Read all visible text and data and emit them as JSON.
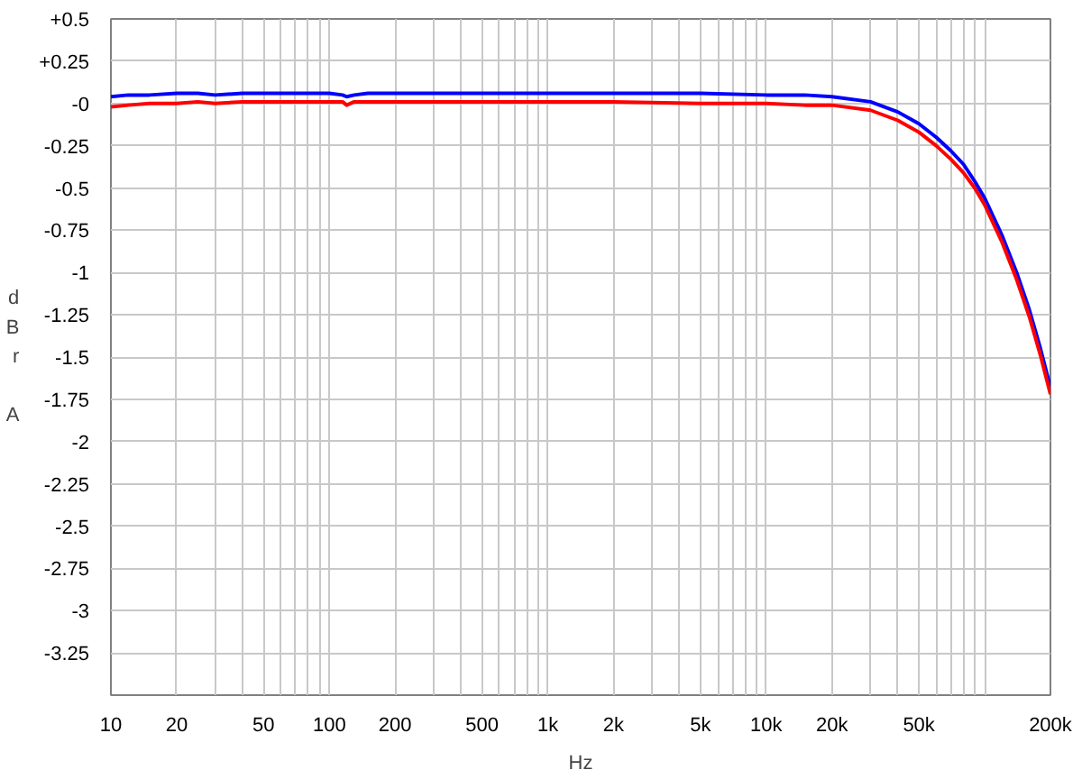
{
  "chart_data": {
    "type": "line",
    "xlabel": "Hz",
    "ylabel": "dBr A",
    "log": "x",
    "grid": true,
    "marker": "none",
    "line_style": "solid",
    "x": [
      10,
      12,
      15,
      20,
      25,
      30,
      40,
      50,
      70,
      100,
      115,
      120,
      130,
      150,
      200,
      500,
      1000,
      2000,
      5000,
      10000,
      15000,
      20000,
      30000,
      40000,
      50000,
      60000,
      70000,
      80000,
      90000,
      100000,
      120000,
      140000,
      160000,
      180000,
      200000
    ],
    "series": [
      {
        "color": "#0000ff",
        "values": [
          0.04,
          0.05,
          0.05,
          0.06,
          0.06,
          0.05,
          0.06,
          0.06,
          0.06,
          0.06,
          0.05,
          0.04,
          0.05,
          0.06,
          0.06,
          0.06,
          0.06,
          0.06,
          0.06,
          0.05,
          0.05,
          0.04,
          0.01,
          -0.05,
          -0.12,
          -0.2,
          -0.28,
          -0.36,
          -0.46,
          -0.56,
          -0.78,
          -1.0,
          -1.22,
          -1.45,
          -1.68
        ]
      },
      {
        "color": "#ff0000",
        "values": [
          -0.02,
          -0.01,
          0,
          0.0,
          0.01,
          0.0,
          0.01,
          0.01,
          0.01,
          0.01,
          0.01,
          -0.01,
          0.01,
          0.01,
          0.01,
          0.01,
          0.01,
          0.01,
          0.0,
          0,
          -0.01,
          -0.01,
          -0.04,
          -0.1,
          -0.17,
          -0.25,
          -0.33,
          -0.41,
          -0.5,
          -0.6,
          -0.82,
          -1.04,
          -1.26,
          -1.49,
          -1.72
        ]
      }
    ],
    "xlim": [
      10,
      200000
    ],
    "xticks": [
      10,
      20,
      {
        "value": 30,
        "label": null
      },
      {
        "value": 40,
        "label": null
      },
      50,
      {
        "value": 60,
        "label": null
      },
      {
        "value": 70,
        "label": null
      },
      {
        "value": 80,
        "label": null
      },
      {
        "value": 90,
        "label": null
      },
      100,
      200,
      {
        "value": 300,
        "label": null
      },
      {
        "value": 400,
        "label": null
      },
      500,
      {
        "value": 600,
        "label": null
      },
      {
        "value": 700,
        "label": null
      },
      {
        "value": 800,
        "label": null
      },
      {
        "value": 900,
        "label": null
      },
      {
        "value": 1000,
        "label": "1k"
      },
      {
        "value": 2000,
        "label": "2k"
      },
      {
        "value": 3000,
        "label": null
      },
      {
        "value": 4000,
        "label": null
      },
      {
        "value": 5000,
        "label": "5k"
      },
      {
        "value": 6000,
        "label": null
      },
      {
        "value": 7000,
        "label": null
      },
      {
        "value": 8000,
        "label": null
      },
      {
        "value": 9000,
        "label": null
      },
      {
        "value": 10000,
        "label": "10k"
      },
      {
        "value": 20000,
        "label": "20k"
      },
      {
        "value": 30000,
        "label": null
      },
      {
        "value": 40000,
        "label": null
      },
      {
        "value": 50000,
        "label": "50k"
      },
      {
        "value": 60000,
        "label": null
      },
      {
        "value": 70000,
        "label": null
      },
      {
        "value": 80000,
        "label": null
      },
      {
        "value": 90000,
        "label": null
      },
      {
        "value": 100000,
        "label": null
      },
      {
        "value": 200000,
        "label": "200k"
      }
    ],
    "ylim": [
      -3.5,
      0.5
    ],
    "yticks": [
      {
        "value": 0.5,
        "label": "+0.5"
      },
      {
        "value": 0.25,
        "label": "+0.25"
      },
      {
        "value": 0,
        "label": "-0"
      },
      -0.25,
      -0.5,
      -0.75,
      -1,
      -1.25,
      -1.5,
      -1.75,
      -2,
      -2.25,
      -2.5,
      -2.75,
      -3,
      -3.25,
      {
        "value": -3.5,
        "label": null
      }
    ]
  }
}
